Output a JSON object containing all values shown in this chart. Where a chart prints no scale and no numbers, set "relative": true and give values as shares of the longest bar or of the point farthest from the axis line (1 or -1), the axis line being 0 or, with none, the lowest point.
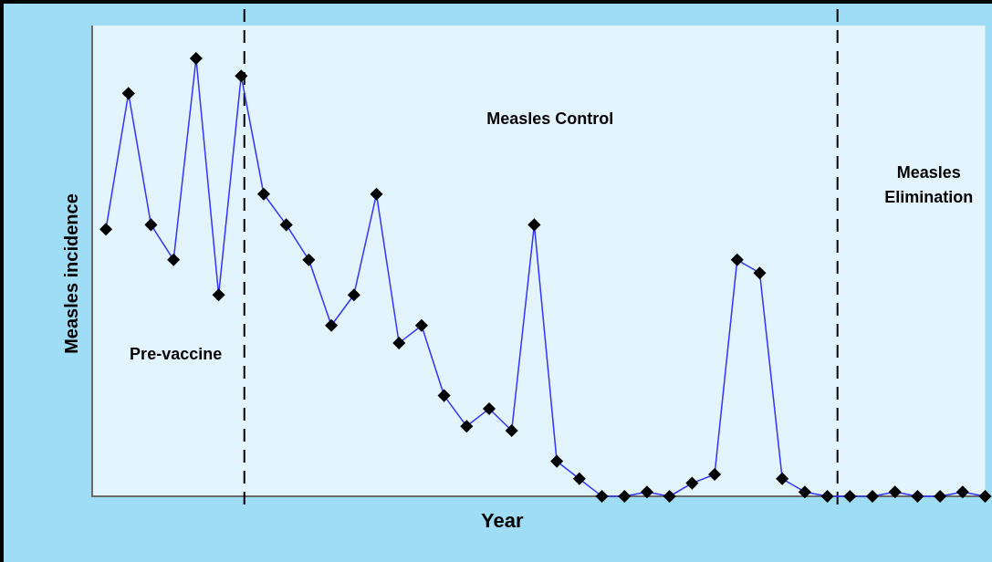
{
  "chart_data": {
    "type": "line",
    "xlabel": "Year",
    "ylabel": "Measles incidence",
    "relative": true,
    "legend": false,
    "marker": "diamond",
    "line_style": "solid",
    "categories": [
      null,
      null,
      null,
      null,
      null,
      null,
      null,
      null,
      null,
      null,
      null,
      null,
      null,
      null,
      null,
      null,
      null,
      null,
      null,
      null,
      null,
      null,
      null,
      null,
      null,
      null,
      null,
      null,
      null,
      null,
      null,
      null,
      null,
      null,
      null,
      null,
      null,
      null,
      null,
      null
    ],
    "series": [
      {
        "color": "#3333ff",
        "values": [
          0.61,
          0.92,
          0.62,
          0.54,
          1,
          0.46,
          0.96,
          0.69,
          0.62,
          0.54,
          0.39,
          0.46,
          0.69,
          0.35,
          0.39,
          0.23,
          0.16,
          0.2,
          0.15,
          0.62,
          0.08,
          0.04,
          0,
          0,
          0.01,
          0,
          0.03,
          0.05,
          0.54,
          0.51,
          0.04,
          0.01,
          0,
          0,
          0,
          0.01,
          0,
          0,
          0.01,
          0
        ]
      }
    ],
    "annotations": [
      "Pre-vaccine",
      "Measles Control",
      "Measles Elimination"
    ]
  }
}
